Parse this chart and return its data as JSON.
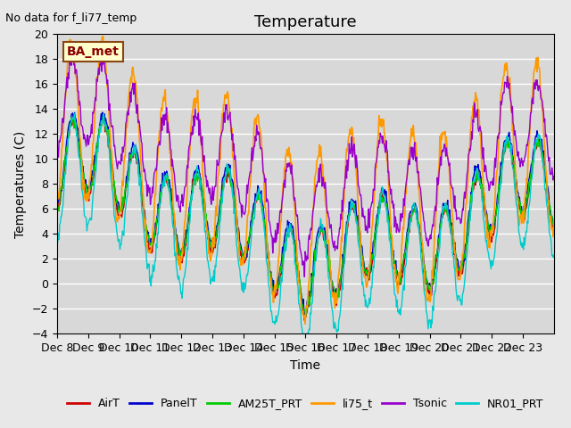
{
  "title": "Temperature",
  "xlabel": "Time",
  "ylabel": "Temperatures (C)",
  "ylim": [
    -4,
    20
  ],
  "yticks": [
    -4,
    -2,
    0,
    2,
    4,
    6,
    8,
    10,
    12,
    14,
    16,
    18,
    20
  ],
  "xlabels": [
    "Dec 8",
    "Dec 9",
    "Dec 10",
    "Dec 11",
    "Dec 12",
    "Dec 13",
    "Dec 14",
    "Dec 15",
    "Dec 16",
    "Dec 17",
    "Dec 18",
    "Dec 19",
    "Dec 20",
    "Dec 21",
    "Dec 22",
    "Dec 23"
  ],
  "annotation": "No data for f_li77_temp",
  "box_label": "BA_met",
  "series_colors": {
    "AirT": "#cc0000",
    "PanelT": "#0000cc",
    "AM25T_PRT": "#00cc00",
    "li75_t": "#ff9900",
    "Tsonic": "#9900cc",
    "NR01_PRT": "#00cccc"
  },
  "legend_order": [
    "AirT",
    "PanelT",
    "AM25T_PRT",
    "li75_t",
    "Tsonic",
    "NR01_PRT"
  ],
  "background_color": "#e8e8e8",
  "plot_bg_color": "#d8d8d8",
  "grid_color": "#ffffff",
  "title_fontsize": 13,
  "label_fontsize": 10,
  "tick_fontsize": 9
}
